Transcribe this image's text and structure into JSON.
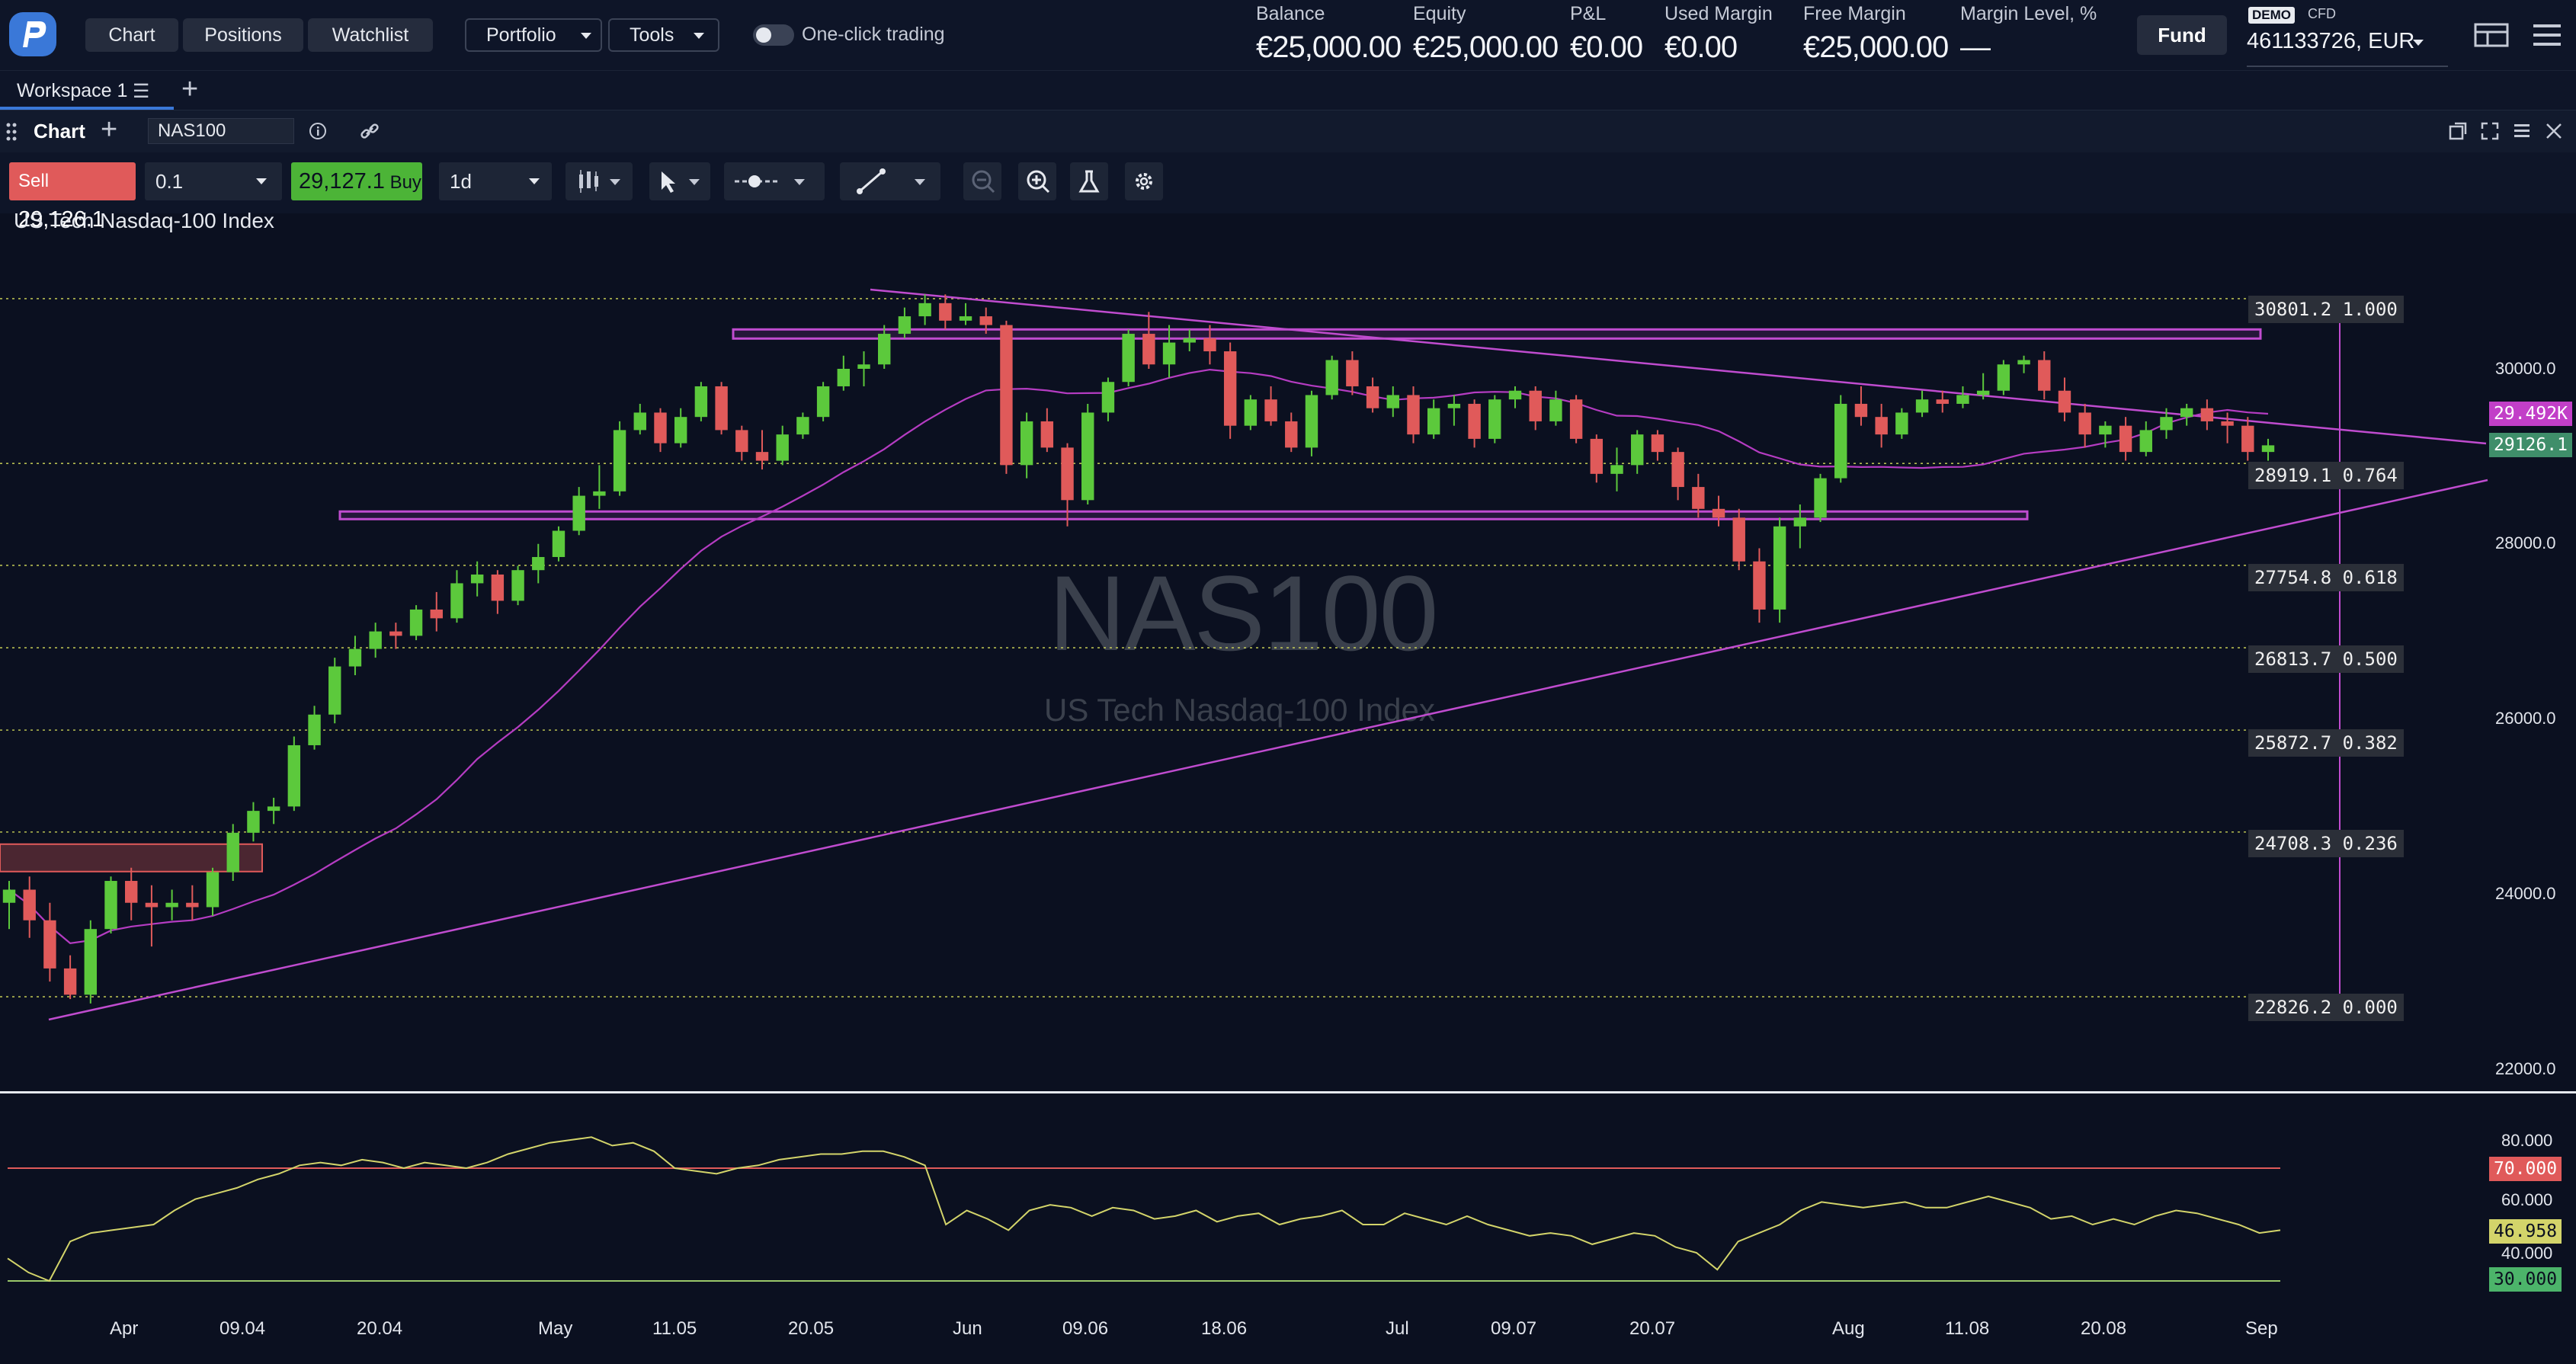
{
  "topbar": {
    "nav": [
      "Chart",
      "Positions",
      "Watchlist"
    ],
    "portfolio": "Portfolio",
    "tools": "Tools",
    "one_click": "One-click trading",
    "account": [
      {
        "label": "Balance",
        "value": "€25,000.00"
      },
      {
        "label": "Equity",
        "value": "€25,000.00"
      },
      {
        "label": "P&L",
        "value": "€0.00"
      },
      {
        "label": "Used Margin",
        "value": "€0.00"
      },
      {
        "label": "Free Margin",
        "value": "€25,000.00"
      },
      {
        "label": "Margin Level, %",
        "value": "—"
      }
    ],
    "fund": "Fund",
    "demo": "DEMO",
    "cfd": "CFD",
    "account_id": "461133726, EUR"
  },
  "workspace": {
    "tab": "Workspace 1"
  },
  "chart_header": {
    "title": "Chart",
    "symbol": "NAS100"
  },
  "toolbar": {
    "sell_label": "Sell",
    "sell_price_main": "29,126",
    "sell_price_dec": ".1",
    "qty": "0.1",
    "buy_price_main": "29,127",
    "buy_price_dec": ".1",
    "buy_label": "Buy",
    "timeframe": "1d"
  },
  "chart": {
    "instrument_title": "US Tech Nasdaq-100 Index",
    "watermark_symbol": "NAS100",
    "watermark_name": "US Tech Nasdaq-100 Index"
  },
  "chart_data": {
    "type": "candlestick",
    "price_axis": {
      "ticks": [
        "30000.0",
        "28000.0",
        "26000.0",
        "24000.0",
        "22000.0"
      ],
      "range": [
        21800,
        31500
      ]
    },
    "x_ticks": [
      "Apr",
      "09.04",
      "20.04",
      "May",
      "11.05",
      "20.05",
      "Jun",
      "09.06",
      "18.06",
      "Jul",
      "09.07",
      "20.07",
      "Aug",
      "11.08",
      "20.08",
      "Sep"
    ],
    "fib_levels": [
      {
        "price": "30801.2",
        "ratio": "1.000"
      },
      {
        "price": "28919.1",
        "ratio": "0.764"
      },
      {
        "price": "27754.8",
        "ratio": "0.618"
      },
      {
        "price": "26813.7",
        "ratio": "0.500"
      },
      {
        "price": "25872.7",
        "ratio": "0.382"
      },
      {
        "price": "24708.3",
        "ratio": "0.236"
      },
      {
        "price": "22826.2",
        "ratio": "0.000"
      }
    ],
    "price_badges": [
      {
        "label": "29.492K",
        "color": "#c23fc8"
      },
      {
        "label": "29126.1",
        "color": "#3f8e6a"
      }
    ],
    "candles": [
      [
        23900,
        24150,
        23600,
        24050
      ],
      [
        24050,
        24200,
        23500,
        23700
      ],
      [
        23700,
        23900,
        23000,
        23150
      ],
      [
        23150,
        23300,
        22800,
        22850
      ],
      [
        22850,
        23700,
        22750,
        23600
      ],
      [
        23600,
        24200,
        23550,
        24150
      ],
      [
        24150,
        24300,
        23700,
        23900
      ],
      [
        23900,
        24100,
        23400,
        23850
      ],
      [
        23850,
        24050,
        23700,
        23900
      ],
      [
        23900,
        24100,
        23700,
        23850
      ],
      [
        23850,
        24300,
        23750,
        24250
      ],
      [
        24250,
        24800,
        24150,
        24700
      ],
      [
        24700,
        25050,
        24600,
        24950
      ],
      [
        24950,
        25100,
        24800,
        25000
      ],
      [
        25000,
        25800,
        24950,
        25700
      ],
      [
        25700,
        26150,
        25650,
        26050
      ],
      [
        26050,
        26700,
        25950,
        26600
      ],
      [
        26600,
        26950,
        26500,
        26800
      ],
      [
        26800,
        27100,
        26700,
        27000
      ],
      [
        27000,
        27100,
        26800,
        26950
      ],
      [
        26950,
        27300,
        26900,
        27250
      ],
      [
        27250,
        27450,
        27000,
        27150
      ],
      [
        27150,
        27700,
        27100,
        27550
      ],
      [
        27550,
        27800,
        27400,
        27650
      ],
      [
        27650,
        27700,
        27200,
        27350
      ],
      [
        27350,
        27750,
        27300,
        27700
      ],
      [
        27700,
        28000,
        27550,
        27850
      ],
      [
        27850,
        28200,
        27800,
        28150
      ],
      [
        28150,
        28650,
        28100,
        28550
      ],
      [
        28550,
        28900,
        28400,
        28600
      ],
      [
        28600,
        29400,
        28550,
        29300
      ],
      [
        29300,
        29600,
        29250,
        29500
      ],
      [
        29500,
        29550,
        29050,
        29150
      ],
      [
        29150,
        29550,
        29100,
        29450
      ],
      [
        29450,
        29850,
        29400,
        29800
      ],
      [
        29800,
        29850,
        29250,
        29300
      ],
      [
        29300,
        29350,
        28950,
        29050
      ],
      [
        29050,
        29300,
        28850,
        28950
      ],
      [
        28950,
        29350,
        28900,
        29250
      ],
      [
        29250,
        29500,
        29200,
        29450
      ],
      [
        29450,
        29850,
        29400,
        29800
      ],
      [
        29800,
        30150,
        29750,
        30000
      ],
      [
        30000,
        30200,
        29800,
        30050
      ],
      [
        30050,
        30500,
        30000,
        30400
      ],
      [
        30400,
        30700,
        30350,
        30600
      ],
      [
        30600,
        30850,
        30500,
        30750
      ],
      [
        30750,
        30850,
        30450,
        30550
      ],
      [
        30550,
        30750,
        30500,
        30600
      ],
      [
        30600,
        30700,
        30400,
        30500
      ],
      [
        30500,
        30550,
        28800,
        28900
      ],
      [
        28900,
        29500,
        28750,
        29400
      ],
      [
        29400,
        29550,
        29050,
        29100
      ],
      [
        29100,
        29150,
        28200,
        28500
      ],
      [
        28500,
        29600,
        28450,
        29500
      ],
      [
        29500,
        29900,
        29400,
        29850
      ],
      [
        29850,
        30450,
        29800,
        30400
      ],
      [
        30400,
        30650,
        30000,
        30050
      ],
      [
        30050,
        30500,
        29900,
        30300
      ],
      [
        30300,
        30450,
        30200,
        30350
      ],
      [
        30350,
        30500,
        30050,
        30200
      ],
      [
        30200,
        30300,
        29200,
        29350
      ],
      [
        29350,
        29700,
        29300,
        29650
      ],
      [
        29650,
        29800,
        29350,
        29400
      ],
      [
        29400,
        29500,
        29050,
        29100
      ],
      [
        29100,
        29750,
        29000,
        29700
      ],
      [
        29700,
        30150,
        29650,
        30100
      ],
      [
        30100,
        30200,
        29700,
        29800
      ],
      [
        29800,
        29900,
        29500,
        29550
      ],
      [
        29550,
        29800,
        29450,
        29700
      ],
      [
        29700,
        29800,
        29150,
        29250
      ],
      [
        29250,
        29650,
        29200,
        29550
      ],
      [
        29550,
        29700,
        29350,
        29600
      ],
      [
        29600,
        29650,
        29100,
        29200
      ],
      [
        29200,
        29700,
        29150,
        29650
      ],
      [
        29650,
        29800,
        29550,
        29750
      ],
      [
        29750,
        29800,
        29300,
        29400
      ],
      [
        29400,
        29750,
        29350,
        29650
      ],
      [
        29650,
        29700,
        29150,
        29200
      ],
      [
        29200,
        29250,
        28700,
        28800
      ],
      [
        28800,
        29100,
        28600,
        28900
      ],
      [
        28900,
        29300,
        28800,
        29250
      ],
      [
        29250,
        29300,
        28950,
        29050
      ],
      [
        29050,
        29100,
        28500,
        28650
      ],
      [
        28650,
        28800,
        28300,
        28400
      ],
      [
        28400,
        28550,
        28200,
        28300
      ],
      [
        28300,
        28400,
        27700,
        27800
      ],
      [
        27800,
        27950,
        27100,
        27250
      ],
      [
        27250,
        28300,
        27100,
        28200
      ],
      [
        28200,
        28450,
        27950,
        28300
      ],
      [
        28300,
        28800,
        28250,
        28750
      ],
      [
        28750,
        29700,
        28700,
        29600
      ],
      [
        29600,
        29800,
        29350,
        29450
      ],
      [
        29450,
        29600,
        29100,
        29250
      ],
      [
        29250,
        29550,
        29200,
        29500
      ],
      [
        29500,
        29750,
        29450,
        29650
      ],
      [
        29650,
        29750,
        29500,
        29600
      ],
      [
        29600,
        29800,
        29550,
        29700
      ],
      [
        29700,
        29950,
        29650,
        29750
      ],
      [
        29750,
        30100,
        29700,
        30050
      ],
      [
        30050,
        30150,
        29950,
        30100
      ],
      [
        30100,
        30200,
        29650,
        29750
      ],
      [
        29750,
        29900,
        29400,
        29500
      ],
      [
        29500,
        29600,
        29100,
        29250
      ],
      [
        29250,
        29400,
        29100,
        29350
      ],
      [
        29350,
        29450,
        28950,
        29050
      ],
      [
        29050,
        29400,
        29000,
        29300
      ],
      [
        29300,
        29550,
        29200,
        29450
      ],
      [
        29450,
        29600,
        29350,
        29550
      ],
      [
        29550,
        29650,
        29300,
        29400
      ],
      [
        29400,
        29500,
        29150,
        29350
      ],
      [
        29350,
        29450,
        28950,
        29050
      ],
      [
        29050,
        29200,
        28950,
        29126
      ]
    ],
    "rsi": {
      "ticks": [
        "80.000",
        "60.000",
        "40.000"
      ],
      "overbought": "70.000",
      "oversold": "30.000",
      "current": "46.958",
      "values": [
        38,
        33,
        30,
        44,
        47,
        48,
        49,
        50,
        55,
        59,
        61,
        63,
        66,
        68,
        71,
        72,
        71,
        73,
        72,
        70,
        72,
        71,
        70,
        72,
        75,
        77,
        79,
        80,
        81,
        78,
        79,
        76,
        70,
        69,
        68,
        70,
        71,
        73,
        74,
        75,
        75,
        76,
        76,
        74,
        71,
        50,
        55,
        52,
        48,
        55,
        57,
        56,
        53,
        56,
        55,
        52,
        53,
        55,
        51,
        53,
        54,
        50,
        52,
        53,
        55,
        50,
        50,
        54,
        52,
        50,
        53,
        50,
        48,
        46,
        47,
        46,
        43,
        45,
        47,
        46,
        42,
        40,
        34,
        44,
        47,
        50,
        55,
        58,
        57,
        56,
        57,
        58,
        56,
        56,
        58,
        60,
        58,
        56,
        52,
        53,
        50,
        52,
        50,
        53,
        55,
        54,
        52,
        50,
        47,
        48
      ]
    }
  },
  "colors": {
    "up": "#5cc93c",
    "down": "#e05a5a",
    "ma": "#b53cc2",
    "fib": "#d6dd5a",
    "rsi": "#d3d46a",
    "bg": "#0b1020"
  }
}
